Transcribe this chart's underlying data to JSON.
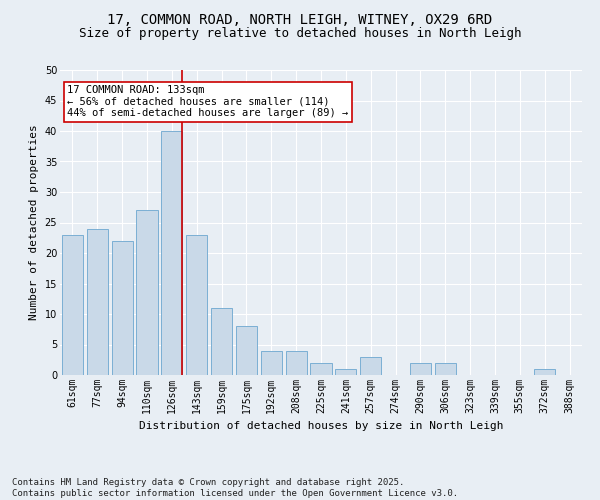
{
  "title_line1": "17, COMMON ROAD, NORTH LEIGH, WITNEY, OX29 6RD",
  "title_line2": "Size of property relative to detached houses in North Leigh",
  "xlabel": "Distribution of detached houses by size in North Leigh",
  "ylabel": "Number of detached properties",
  "bar_labels": [
    "61sqm",
    "77sqm",
    "94sqm",
    "110sqm",
    "126sqm",
    "143sqm",
    "159sqm",
    "175sqm",
    "192sqm",
    "208sqm",
    "225sqm",
    "241sqm",
    "257sqm",
    "274sqm",
    "290sqm",
    "306sqm",
    "323sqm",
    "339sqm",
    "355sqm",
    "372sqm",
    "388sqm"
  ],
  "bar_values": [
    23,
    24,
    22,
    27,
    40,
    23,
    11,
    8,
    4,
    4,
    2,
    1,
    3,
    0,
    2,
    2,
    0,
    0,
    0,
    1,
    0
  ],
  "bar_color": "#c9d9e8",
  "bar_edgecolor": "#7bafd4",
  "background_color": "#e8eef4",
  "grid_color": "#ffffff",
  "vline_x": 4.425,
  "vline_color": "#cc0000",
  "annotation_text": "17 COMMON ROAD: 133sqm\n← 56% of detached houses are smaller (114)\n44% of semi-detached houses are larger (89) →",
  "annotation_box_edgecolor": "#cc0000",
  "annotation_box_facecolor": "#ffffff",
  "ylim": [
    0,
    50
  ],
  "yticks": [
    0,
    5,
    10,
    15,
    20,
    25,
    30,
    35,
    40,
    45,
    50
  ],
  "footer_line1": "Contains HM Land Registry data © Crown copyright and database right 2025.",
  "footer_line2": "Contains public sector information licensed under the Open Government Licence v3.0.",
  "title_fontsize": 10,
  "subtitle_fontsize": 9,
  "label_fontsize": 7,
  "axis_label_fontsize": 8,
  "footer_fontsize": 6.5,
  "annot_fontsize": 7.5
}
